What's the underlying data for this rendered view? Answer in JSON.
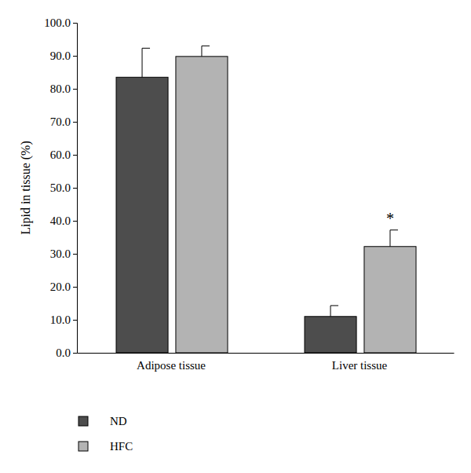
{
  "chart_data": {
    "type": "bar",
    "y_label": "Lipid in tissue (%)",
    "categories": [
      "Adipose tissue",
      "Liver tissue"
    ],
    "series": [
      {
        "name": "ND",
        "color": "#4d4d4d",
        "values": [
          83.5,
          11.0
        ],
        "errors": [
          8.8,
          3.3
        ]
      },
      {
        "name": "HFC",
        "color": "#b3b3b3",
        "values": [
          89.8,
          32.2
        ],
        "errors": [
          3.2,
          5.0
        ]
      }
    ],
    "ylim": [
      0,
      100
    ],
    "yticks": [
      {
        "value": 0,
        "label": "0.0"
      },
      {
        "value": 10,
        "label": "10.0"
      },
      {
        "value": 20,
        "label": "20.0"
      },
      {
        "value": 30,
        "label": "30.0"
      },
      {
        "value": 40,
        "label": "40.0"
      },
      {
        "value": 50,
        "label": "50.0"
      },
      {
        "value": 60,
        "label": "60.0"
      },
      {
        "value": 70,
        "label": "70.0"
      },
      {
        "value": 80,
        "label": "80.0"
      },
      {
        "value": 90,
        "label": "90.0"
      },
      {
        "value": 100,
        "label": "100.0"
      }
    ],
    "annotations": [
      {
        "text": "*",
        "category": "Liver tissue",
        "series": "HFC"
      }
    ],
    "legend": "bottom-left",
    "grid": false
  }
}
